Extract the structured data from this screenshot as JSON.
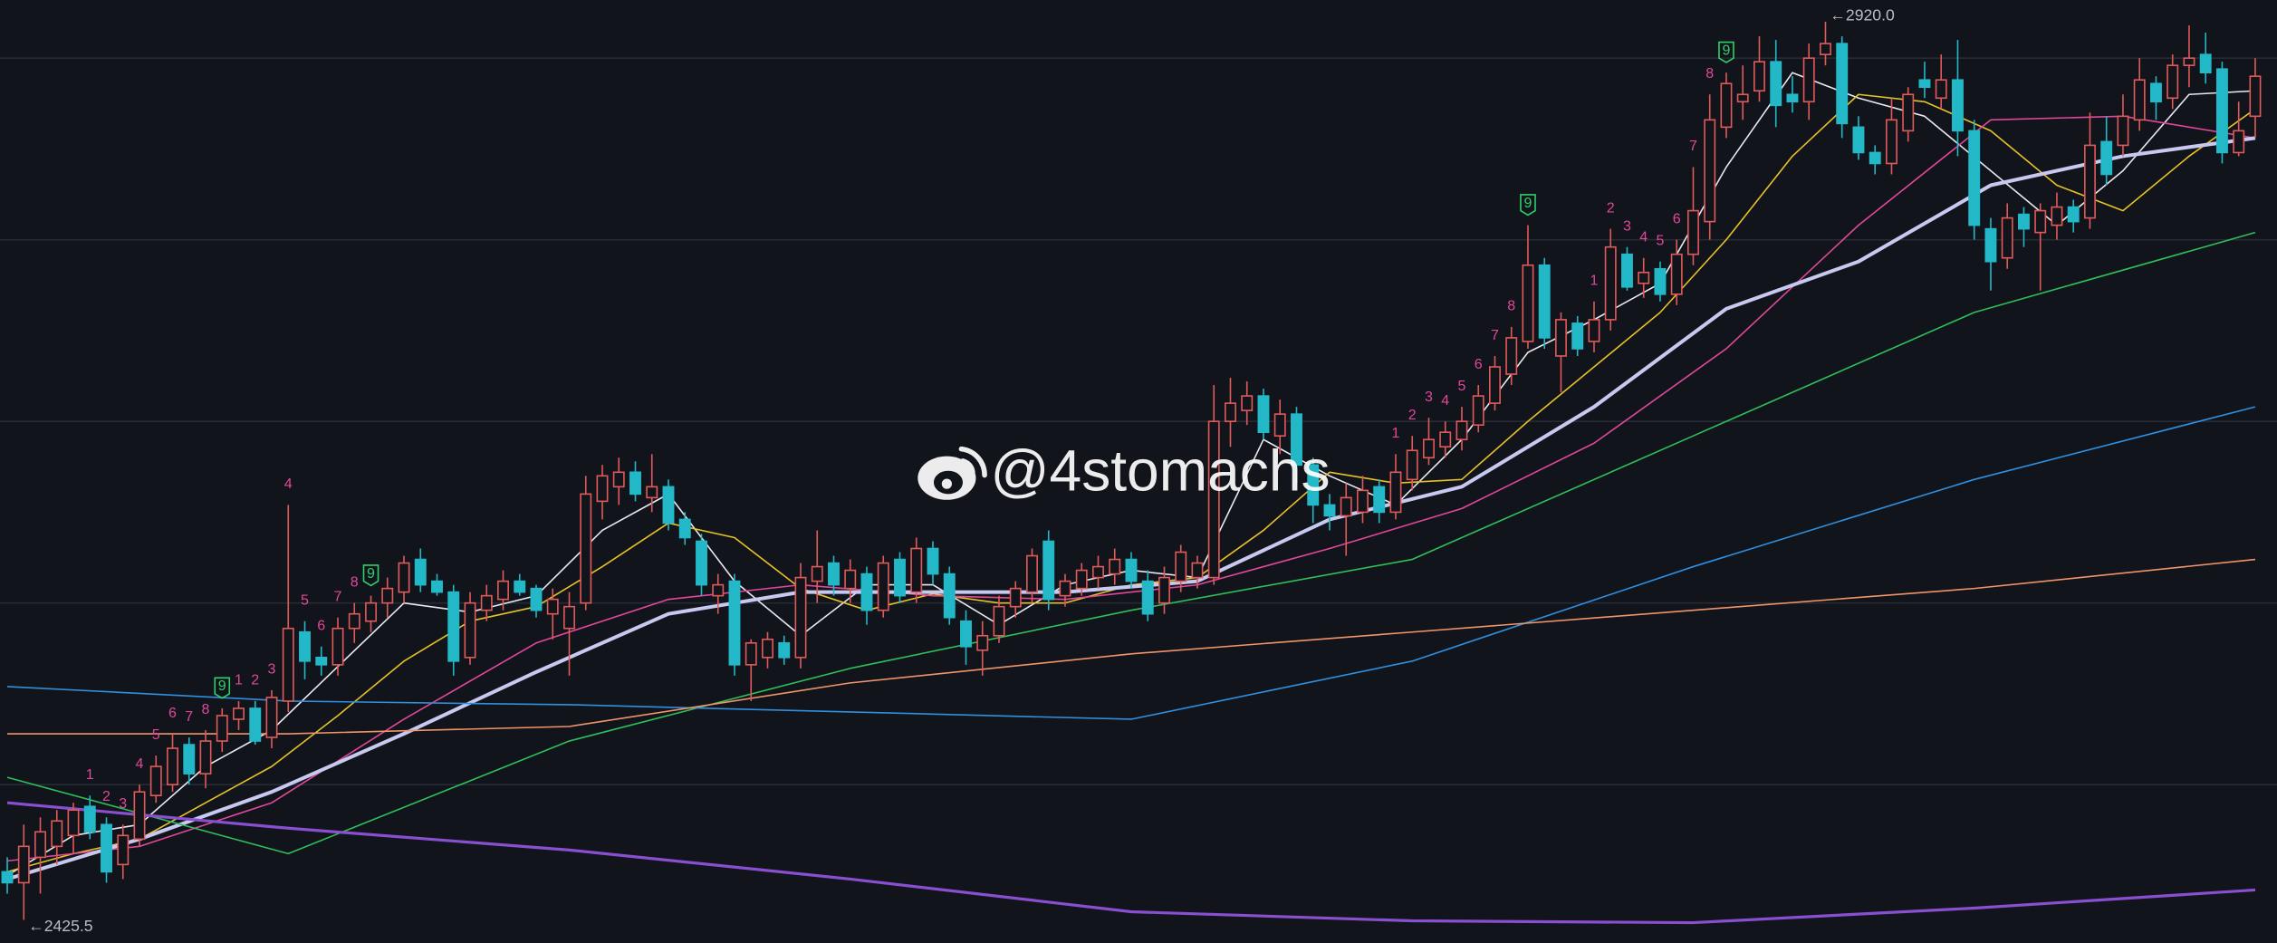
{
  "chart_data": {
    "type": "candlestick",
    "watermark": "@4stomachs",
    "up_color": "#e05a5a",
    "down_color": "#22b8c8",
    "open": [
      2452,
      2446,
      2460,
      2466,
      2472,
      2488,
      2478,
      2456,
      2470,
      2494,
      2500,
      2522,
      2506,
      2524,
      2536,
      2542,
      2526,
      2546,
      2584,
      2570,
      2566,
      2586,
      2590,
      2600,
      2606,
      2624,
      2612,
      2606,
      2570,
      2596,
      2602,
      2612,
      2608,
      2594,
      2586,
      2600,
      2656,
      2664,
      2672,
      2658,
      2664,
      2646,
      2634,
      2604,
      2612,
      2566,
      2570,
      2578,
      2570,
      2612,
      2622,
      2608,
      2616,
      2596,
      2624,
      2606,
      2630,
      2616,
      2590,
      2574,
      2582,
      2598,
      2606,
      2634,
      2604,
      2608,
      2614,
      2616,
      2624,
      2612,
      2600,
      2612,
      2614,
      2614,
      2700,
      2706,
      2714,
      2692,
      2704,
      2676,
      2654,
      2648,
      2650,
      2664,
      2650,
      2668,
      2680,
      2686,
      2690,
      2698,
      2710,
      2726,
      2744,
      2786,
      2736,
      2754,
      2744,
      2756,
      2792,
      2776,
      2784,
      2770,
      2792,
      2810,
      2862,
      2876,
      2882,
      2898,
      2880,
      2876,
      2902,
      2908,
      2862,
      2848,
      2842,
      2860,
      2888,
      2878,
      2888,
      2860,
      2806,
      2790,
      2814,
      2804,
      2808,
      2818,
      2812,
      2854,
      2852,
      2866,
      2886,
      2878,
      2896,
      2902,
      2894,
      2848,
      2868
    ],
    "high": [
      2460,
      2478,
      2482,
      2486,
      2490,
      2494,
      2482,
      2478,
      2500,
      2516,
      2528,
      2526,
      2530,
      2542,
      2546,
      2546,
      2552,
      2654,
      2590,
      2576,
      2592,
      2600,
      2604,
      2614,
      2626,
      2630,
      2616,
      2610,
      2606,
      2610,
      2618,
      2616,
      2610,
      2608,
      2606,
      2670,
      2676,
      2680,
      2678,
      2682,
      2668,
      2650,
      2638,
      2616,
      2616,
      2580,
      2584,
      2582,
      2622,
      2640,
      2626,
      2624,
      2620,
      2626,
      2628,
      2636,
      2634,
      2620,
      2596,
      2590,
      2604,
      2612,
      2630,
      2640,
      2616,
      2622,
      2626,
      2630,
      2628,
      2618,
      2620,
      2632,
      2626,
      2720,
      2724,
      2722,
      2718,
      2712,
      2708,
      2680,
      2660,
      2666,
      2670,
      2668,
      2682,
      2692,
      2702,
      2700,
      2708,
      2720,
      2736,
      2752,
      2808,
      2790,
      2760,
      2758,
      2766,
      2806,
      2796,
      2790,
      2788,
      2800,
      2840,
      2880,
      2892,
      2896,
      2912,
      2910,
      2890,
      2908,
      2920,
      2912,
      2868,
      2852,
      2878,
      2884,
      2898,
      2902,
      2910,
      2866,
      2812,
      2820,
      2818,
      2820,
      2826,
      2822,
      2870,
      2868,
      2880,
      2900,
      2890,
      2902,
      2918,
      2914,
      2898,
      2876,
      2900
    ],
    "low": [
      2440,
      2425.5,
      2440,
      2456,
      2462,
      2470,
      2446,
      2448,
      2466,
      2490,
      2496,
      2500,
      2498,
      2518,
      2530,
      2522,
      2520,
      2540,
      2558,
      2560,
      2560,
      2578,
      2584,
      2592,
      2600,
      2606,
      2604,
      2560,
      2566,
      2590,
      2596,
      2604,
      2592,
      2580,
      2560,
      2596,
      2646,
      2654,
      2656,
      2650,
      2640,
      2632,
      2604,
      2594,
      2560,
      2546,
      2564,
      2566,
      2564,
      2600,
      2604,
      2600,
      2588,
      2592,
      2600,
      2600,
      2610,
      2588,
      2566,
      2560,
      2578,
      2592,
      2600,
      2596,
      2598,
      2604,
      2608,
      2610,
      2608,
      2590,
      2594,
      2606,
      2608,
      2610,
      2686,
      2698,
      2690,
      2682,
      2666,
      2644,
      2640,
      2626,
      2644,
      2644,
      2646,
      2662,
      2676,
      2680,
      2684,
      2694,
      2706,
      2720,
      2740,
      2740,
      2716,
      2736,
      2738,
      2750,
      2772,
      2768,
      2766,
      2764,
      2786,
      2800,
      2856,
      2866,
      2876,
      2862,
      2870,
      2866,
      2896,
      2856,
      2844,
      2836,
      2836,
      2854,
      2878,
      2872,
      2846,
      2800,
      2772,
      2784,
      2796,
      2772,
      2800,
      2804,
      2806,
      2830,
      2846,
      2860,
      2866,
      2872,
      2884,
      2886,
      2842,
      2846,
      2856
    ],
    "close": [
      2446,
      2466,
      2474,
      2480,
      2486,
      2474,
      2452,
      2472,
      2496,
      2510,
      2520,
      2506,
      2524,
      2538,
      2542,
      2524,
      2548,
      2586,
      2568,
      2566,
      2586,
      2594,
      2600,
      2608,
      2622,
      2610,
      2606,
      2568,
      2600,
      2604,
      2612,
      2606,
      2596,
      2602,
      2598,
      2660,
      2670,
      2672,
      2660,
      2664,
      2644,
      2636,
      2610,
      2610,
      2566,
      2578,
      2580,
      2570,
      2614,
      2620,
      2610,
      2618,
      2596,
      2622,
      2604,
      2630,
      2616,
      2592,
      2576,
      2582,
      2598,
      2608,
      2626,
      2602,
      2612,
      2618,
      2620,
      2624,
      2612,
      2594,
      2614,
      2628,
      2622,
      2700,
      2710,
      2714,
      2694,
      2704,
      2676,
      2654,
      2648,
      2658,
      2662,
      2650,
      2672,
      2684,
      2690,
      2694,
      2700,
      2714,
      2730,
      2746,
      2786,
      2746,
      2756,
      2740,
      2756,
      2796,
      2774,
      2782,
      2770,
      2792,
      2816,
      2866,
      2886,
      2880,
      2898,
      2874,
      2876,
      2900,
      2908,
      2864,
      2848,
      2842,
      2866,
      2880,
      2884,
      2888,
      2860,
      2808,
      2788,
      2812,
      2806,
      2816,
      2818,
      2810,
      2852,
      2836,
      2868,
      2888,
      2876,
      2896,
      2900,
      2892,
      2848,
      2860,
      2890
    ],
    "high_label": {
      "value": 2920.0,
      "label": "←2920.0"
    },
    "low_label": {
      "value": 2425.5,
      "label": "←2425.5"
    },
    "td_counts": [
      null,
      null,
      null,
      null,
      null,
      1,
      2,
      3,
      4,
      5,
      6,
      7,
      8,
      9,
      1,
      2,
      3,
      4,
      5,
      6,
      7,
      8,
      9,
      null,
      null,
      null,
      null,
      null,
      null,
      null,
      null,
      null,
      null,
      null,
      null,
      null,
      null,
      null,
      null,
      null,
      null,
      null,
      null,
      null,
      null,
      null,
      null,
      null,
      null,
      null,
      null,
      null,
      null,
      null,
      null,
      null,
      null,
      null,
      null,
      null,
      null,
      null,
      null,
      null,
      null,
      null,
      null,
      null,
      null,
      null,
      null,
      null,
      null,
      null,
      null,
      null,
      null,
      null,
      null,
      null,
      null,
      null,
      null,
      null,
      1,
      2,
      3,
      4,
      5,
      6,
      7,
      8,
      9,
      null,
      null,
      null,
      1,
      2,
      3,
      4,
      5,
      6,
      7,
      8,
      9,
      null,
      null,
      null,
      null,
      null,
      null,
      null,
      null,
      null,
      null,
      null,
      null,
      null,
      null,
      null,
      null,
      null,
      null,
      null,
      null,
      null,
      null,
      null,
      null,
      null,
      null,
      null,
      null,
      null,
      null,
      null,
      null
    ],
    "lines": [
      {
        "color": "#e8e8f0",
        "width": 1,
        "x": [
          0,
          4,
          8,
          12,
          16,
          20,
          24,
          28,
          32,
          36,
          40,
          44,
          48,
          52,
          56,
          60,
          64,
          68,
          72,
          76,
          80,
          84,
          88,
          92,
          96,
          100,
          104,
          108,
          112,
          116,
          120,
          124,
          128,
          132,
          136
        ],
        "values": [
          2450,
          2472,
          2478,
          2510,
          2530,
          2565,
          2600,
          2595,
          2604,
          2640,
          2660,
          2612,
          2582,
          2610,
          2610,
          2588,
          2610,
          2618,
          2614,
          2690,
          2670,
          2654,
          2690,
          2738,
          2756,
          2776,
          2840,
          2892,
          2878,
          2868,
          2838,
          2808,
          2838,
          2880,
          2882
        ]
      },
      {
        "color": "#e6c229",
        "width": 1,
        "x": [
          0,
          4,
          8,
          12,
          16,
          20,
          24,
          28,
          32,
          36,
          40,
          44,
          48,
          52,
          56,
          60,
          64,
          68,
          72,
          76,
          80,
          84,
          88,
          92,
          96,
          100,
          104,
          108,
          112,
          116,
          120,
          124,
          128,
          132,
          136
        ],
        "values": [
          2452,
          2462,
          2470,
          2490,
          2510,
          2538,
          2568,
          2590,
          2598,
          2620,
          2644,
          2636,
          2608,
          2596,
          2605,
          2600,
          2600,
          2610,
          2614,
          2640,
          2672,
          2666,
          2668,
          2700,
          2730,
          2760,
          2800,
          2846,
          2880,
          2876,
          2860,
          2830,
          2816,
          2846,
          2872
        ]
      },
      {
        "color": "#e0489a",
        "width": 1,
        "x": [
          0,
          8,
          16,
          24,
          32,
          40,
          48,
          56,
          64,
          72,
          80,
          88,
          96,
          104,
          112,
          120,
          128,
          136
        ],
        "values": [
          2458,
          2466,
          2490,
          2536,
          2578,
          2602,
          2610,
          2604,
          2602,
          2610,
          2630,
          2652,
          2688,
          2740,
          2808,
          2866,
          2868,
          2856
        ]
      },
      {
        "color": "#c7c9f0",
        "width": 2.5,
        "x": [
          0,
          8,
          16,
          24,
          32,
          40,
          48,
          56,
          64,
          72,
          80,
          88,
          96,
          104,
          112,
          120,
          128,
          136
        ],
        "values": [
          2448,
          2470,
          2496,
          2528,
          2562,
          2594,
          2606,
          2606,
          2606,
          2612,
          2646,
          2664,
          2708,
          2762,
          2788,
          2830,
          2846,
          2856
        ]
      },
      {
        "color": "#2fbf5a",
        "width": 1,
        "x": [
          0,
          17,
          34,
          51,
          68,
          85,
          102,
          119,
          136
        ],
        "values": [
          2504,
          2462,
          2524,
          2564,
          2596,
          2624,
          2692,
          2760,
          2804
        ]
      },
      {
        "color": "#2f8fe0",
        "width": 1,
        "x": [
          0,
          17,
          34,
          51,
          68,
          85,
          102,
          119,
          136
        ],
        "values": [
          2554,
          2546,
          2544,
          2540,
          2536,
          2568,
          2620,
          2668,
          2708
        ]
      },
      {
        "color": "#f0956a",
        "width": 1,
        "x": [
          0,
          17,
          34,
          51,
          68,
          85,
          102,
          119,
          136
        ],
        "values": [
          2528,
          2528,
          2532,
          2556,
          2572,
          2584,
          2596,
          2608,
          2624
        ]
      },
      {
        "color": "#8a4fd0",
        "width": 2,
        "x": [
          0,
          17,
          34,
          51,
          68,
          85,
          102,
          119,
          136
        ],
        "values": [
          2490,
          2476,
          2464,
          2448,
          2430,
          2425,
          2424,
          2432,
          2442
        ]
      }
    ],
    "ylim": [
      2412.8,
      2932
    ],
    "yticks": [
      2500,
      2600,
      2700,
      2800,
      2900
    ],
    "grid": true
  }
}
